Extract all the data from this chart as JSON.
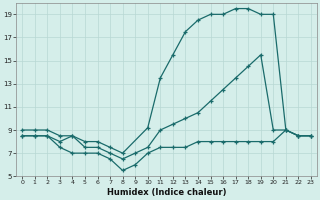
{
  "xlabel": "Humidex (Indice chaleur)",
  "bg_color": "#d5eeea",
  "grid_color": "#b8d8d4",
  "line_color": "#1a6b6b",
  "xlim": [
    -0.5,
    23.5
  ],
  "ylim": [
    5,
    20
  ],
  "xticks": [
    0,
    1,
    2,
    3,
    4,
    5,
    6,
    7,
    8,
    9,
    10,
    11,
    12,
    13,
    14,
    15,
    16,
    17,
    18,
    19,
    20,
    21,
    22,
    23
  ],
  "yticks": [
    5,
    7,
    9,
    11,
    13,
    15,
    17,
    19
  ],
  "series": [
    {
      "x": [
        0,
        1,
        2,
        3,
        4,
        5,
        6,
        7,
        8,
        10,
        11,
        12,
        13,
        14,
        15,
        16,
        17,
        18,
        19,
        20,
        21,
        22,
        23
      ],
      "y": [
        9,
        9,
        9,
        8.5,
        8.5,
        8,
        8,
        7.5,
        7,
        9.2,
        13.5,
        15.5,
        17.5,
        18.5,
        19,
        19,
        19.5,
        19.5,
        19,
        19,
        9,
        8.5,
        8.5
      ]
    },
    {
      "x": [
        0,
        1,
        2,
        3,
        4,
        5,
        6,
        7,
        8,
        9,
        10,
        11,
        12,
        13,
        14,
        15,
        16,
        17,
        18,
        19,
        20,
        21,
        22,
        23
      ],
      "y": [
        8.5,
        8.5,
        8.5,
        7.5,
        7,
        7,
        7,
        6.5,
        5.5,
        6,
        7,
        7.5,
        7.5,
        7.5,
        8,
        8,
        8,
        8,
        8,
        8,
        8,
        9,
        8.5,
        8.5
      ]
    },
    {
      "x": [
        0,
        1,
        2,
        3,
        4,
        5,
        6,
        7,
        8,
        9,
        10,
        11,
        12,
        13,
        14,
        15,
        16,
        17,
        18,
        19,
        20,
        21,
        22,
        23
      ],
      "y": [
        8.5,
        8.5,
        8.5,
        8,
        8.5,
        7.5,
        7.5,
        7,
        6.5,
        7,
        7.5,
        9,
        9.5,
        10,
        10.5,
        11.5,
        12.5,
        13.5,
        14.5,
        15.5,
        9,
        9,
        8.5,
        8.5
      ]
    }
  ]
}
